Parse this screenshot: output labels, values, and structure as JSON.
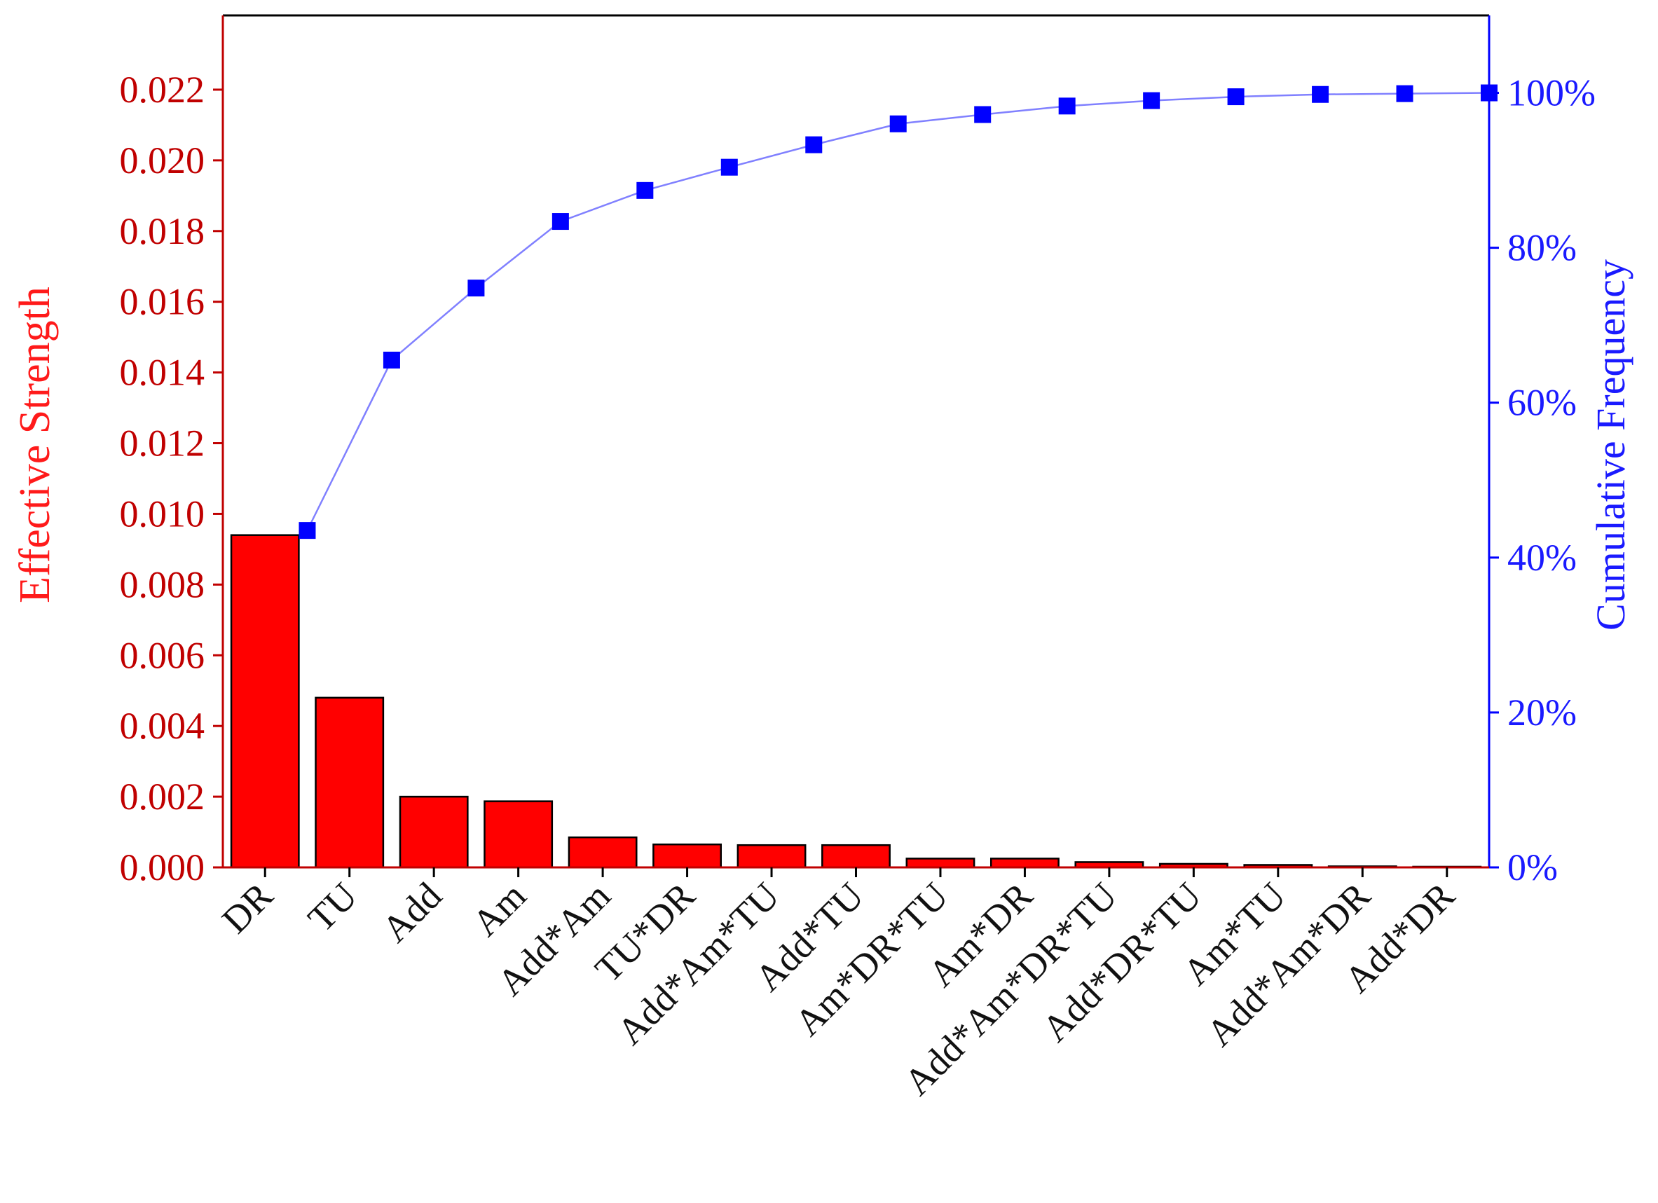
{
  "chart_data": {
    "type": "bar",
    "categories": [
      "DR",
      "TU",
      "Add",
      "Am",
      "Add*Am",
      "TU*DR",
      "Add*Am*TU",
      "Add*TU",
      "Am*DR*TU",
      "Am*DR",
      "Add*Am*DR*TU",
      "Add*DR*TU",
      "Am*TU",
      "Add*Am*DR",
      "Add*DR"
    ],
    "series": [
      {
        "name": "Effective Strength",
        "axis": "left",
        "type": "bar",
        "values": [
          0.0094,
          0.0048,
          0.002,
          0.00187,
          0.00085,
          0.00065,
          0.00063,
          0.00063,
          0.00025,
          0.00025,
          0.00015,
          0.0001,
          7e-05,
          3e-05,
          2e-05
        ]
      },
      {
        "name": "Cumulative Frequency",
        "axis": "right",
        "type": "line",
        "values": [
          43.5,
          65.5,
          74.8,
          83.4,
          87.4,
          90.4,
          93.3,
          96.0,
          97.2,
          98.3,
          99.0,
          99.5,
          99.8,
          99.9,
          100.0
        ]
      }
    ],
    "ylabel": "Effective Strength",
    "y2label": "Cumulative Frequency",
    "ylim": [
      0,
      0.0241
    ],
    "y2lim": [
      0,
      110
    ],
    "yticks": [
      "0.000",
      "0.002",
      "0.004",
      "0.006",
      "0.008",
      "0.010",
      "0.012",
      "0.014",
      "0.016",
      "0.018",
      "0.020",
      "0.022"
    ],
    "y2ticks": [
      "0%",
      "20%",
      "40%",
      "60%",
      "80%",
      "100%"
    ],
    "colors": {
      "bar_fill": "#ff0000",
      "bar_stroke": "#000000",
      "line": "#8080ff",
      "marker": "#0000ff",
      "left_axis": "#c00000",
      "right_axis": "#0000ff"
    },
    "grid": false
  }
}
